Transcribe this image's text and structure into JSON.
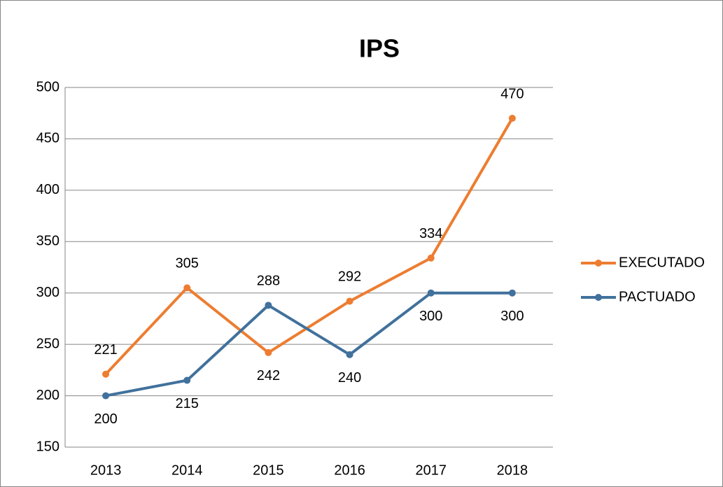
{
  "chart_data": {
    "type": "line",
    "title": "IPS",
    "categories": [
      "2013",
      "2014",
      "2015",
      "2016",
      "2017",
      "2018"
    ],
    "series": [
      {
        "name": "EXECUTADO",
        "color": "#ed7d31",
        "values": [
          221,
          305,
          242,
          292,
          334,
          470
        ]
      },
      {
        "name": "PACTUADO",
        "color": "#41719c",
        "values": [
          200,
          215,
          288,
          240,
          300,
          300
        ]
      }
    ],
    "ylim": [
      150,
      500
    ],
    "yticks": [
      150,
      200,
      250,
      300,
      350,
      400,
      450,
      500
    ],
    "grid": true,
    "legend": "right"
  }
}
